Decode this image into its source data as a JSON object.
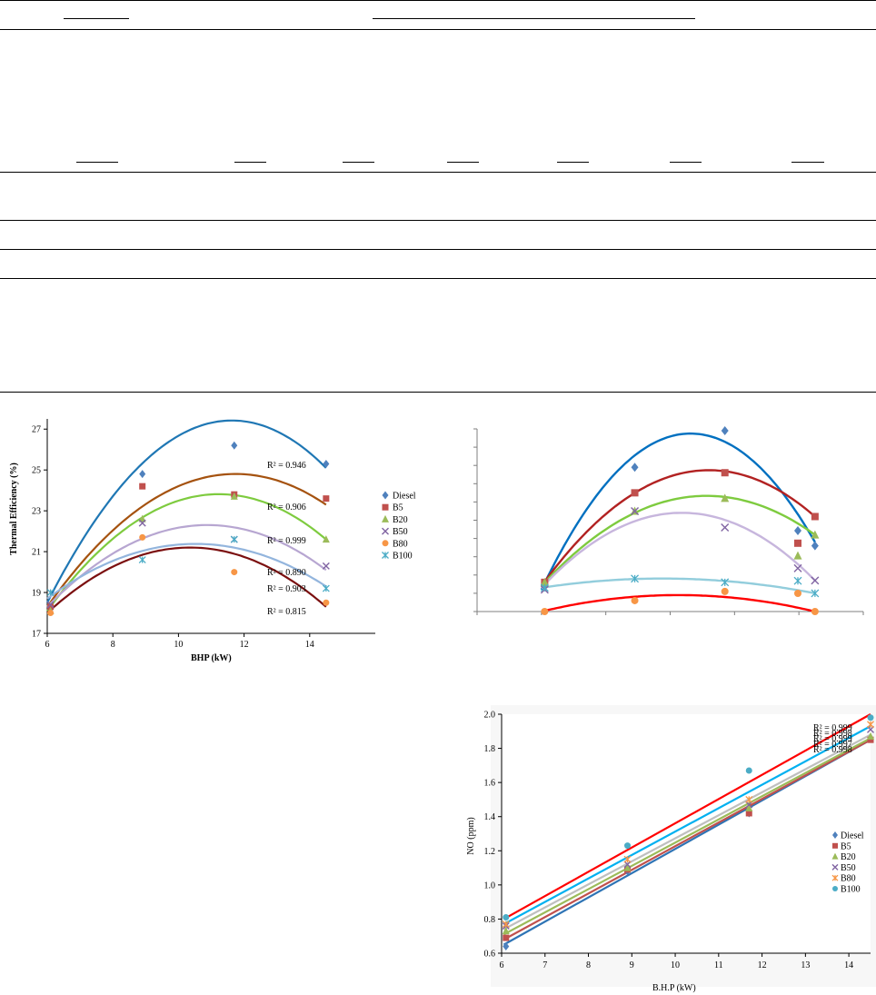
{
  "colors": {
    "Diesel": "#4f81bd",
    "B5": "#c0504d",
    "B20": "#9bbb59",
    "B50": "#8064a2",
    "B80": "#f79646",
    "B100": "#4bacc6",
    "axis": "#000000",
    "gridline": "#d9d9d9"
  },
  "chart_data": [
    {
      "type": "scatter",
      "title": "",
      "xlabel": "BHP (kW)",
      "ylabel": "Thermal Efficiency (%)",
      "xlim": [
        6,
        16
      ],
      "ylim": [
        17,
        27.5
      ],
      "xticks": [
        6,
        8,
        10,
        12,
        14
      ],
      "yticks": [
        17,
        19,
        21,
        23,
        25,
        27
      ],
      "grid": false,
      "legend": "right",
      "series": [
        {
          "name": "Diesel",
          "marker": "diamond",
          "x": [
            6.1,
            8.9,
            11.7,
            14.5
          ],
          "y": [
            18.2,
            24.8,
            26.2,
            25.3
          ],
          "trend": {
            "color": "#1f77b4",
            "x": [
              6,
              11.9,
              14.5
            ],
            "y": [
              18.5,
              27.4,
              25.1
            ]
          }
        },
        {
          "name": "B5",
          "marker": "square",
          "x": [
            6.1,
            8.9,
            11.7,
            14.5
          ],
          "y": [
            18.3,
            24.2,
            23.8,
            23.6
          ],
          "trend": {
            "color": "#a5520f",
            "x": [
              6,
              11.6,
              14.5
            ],
            "y": [
              18.3,
              24.8,
              23.3
            ]
          }
        },
        {
          "name": "B20",
          "marker": "triangle",
          "x": [
            6.1,
            8.9,
            11.7,
            14.5
          ],
          "y": [
            18.1,
            22.6,
            23.7,
            21.6
          ],
          "trend": {
            "color": "#7ecb3f",
            "x": [
              6,
              11.5,
              14.5
            ],
            "y": [
              18.1,
              23.8,
              21.6
            ]
          }
        },
        {
          "name": "B50",
          "marker": "x",
          "x": [
            6.1,
            8.9,
            11.7,
            14.5
          ],
          "y": [
            18.4,
            22.4,
            21.6,
            20.3
          ],
          "trend": {
            "color": "#b7a6d1",
            "x": [
              6,
              11,
              14.5
            ],
            "y": [
              18.3,
              22.3,
              20.1
            ]
          }
        },
        {
          "name": "B80",
          "marker": "circle",
          "x": [
            6.1,
            8.9,
            11.7,
            14.5
          ],
          "y": [
            18.0,
            21.7,
            20.0,
            18.5
          ],
          "trend": {
            "color": "#7b0f0f",
            "x": [
              6,
              10.3,
              14.5
            ],
            "y": [
              18.0,
              21.2,
              18.3
            ]
          }
        },
        {
          "name": "B100",
          "marker": "asterisk",
          "x": [
            6.1,
            8.9,
            11.7,
            14.5
          ],
          "y": [
            19.0,
            20.6,
            21.6,
            19.2
          ],
          "trend": {
            "color": "#93b5dd",
            "x": [
              6,
              11.3,
              14.5
            ],
            "y": [
              18.7,
              21.3,
              19.3
            ]
          }
        }
      ],
      "annotations": [
        "R² = 0.946",
        "R² = 0.906",
        "R² = 0.999",
        "R² = 0.890",
        "R² = 0.903",
        "R² = 0.815"
      ]
    },
    {
      "type": "scatter",
      "title": "",
      "xlabel": "",
      "ylabel": "",
      "xlim": [
        4,
        16
      ],
      "ylim": [
        0,
        10
      ],
      "grid": false,
      "legend": "right",
      "series": [
        {
          "name": "",
          "marker": "diamond",
          "color": "#4f81bd",
          "x": [
            6.1,
            8.9,
            11.7,
            14.5
          ],
          "y": [
            1.5,
            7.9,
            9.9,
            3.6
          ],
          "trend": {
            "color": "#0070c0",
            "x": [
              6,
              10.3,
              14.5
            ],
            "y": [
              1.2,
              9.7,
              3.8
            ]
          }
        },
        {
          "name": "",
          "marker": "square",
          "color": "#c0504d",
          "x": [
            6.1,
            8.9,
            11.7,
            14.5
          ],
          "y": [
            1.6,
            6.5,
            7.6,
            5.2
          ],
          "trend": {
            "color": "#b22222",
            "x": [
              6,
              10.8,
              14.5
            ],
            "y": [
              1.4,
              7.7,
              5.2
            ]
          }
        },
        {
          "name": "",
          "marker": "triangle",
          "color": "#9bbb59",
          "x": [
            6.1,
            8.9,
            11.7,
            14.5
          ],
          "y": [
            1.6,
            5.5,
            6.2,
            4.2
          ],
          "trend": {
            "color": "#7ecb3f",
            "x": [
              6,
              10.7,
              14.5
            ],
            "y": [
              1.4,
              6.3,
              4.2
            ]
          }
        },
        {
          "name": "",
          "marker": "x",
          "color": "#8064a2",
          "x": [
            6.1,
            8.9,
            11.7,
            14.5
          ],
          "y": [
            1.2,
            5.5,
            4.6,
            1.7
          ],
          "trend": {
            "color": "#c7b6dd",
            "x": [
              6,
              10.2,
              14.5
            ],
            "y": [
              1.3,
              5.4,
              1.7
            ]
          }
        },
        {
          "name": "",
          "marker": "asterisk",
          "color": "#4bacc6",
          "x": [
            6.1,
            8.9,
            11.7,
            14.5
          ],
          "y": [
            1.3,
            1.8,
            1.6,
            1.0
          ],
          "trend": {
            "color": "#92cddc",
            "x": [
              6,
              10.2,
              14.5
            ],
            "y": [
              1.3,
              1.8,
              1.0
            ]
          }
        },
        {
          "name": "",
          "marker": "circle",
          "color": "#f79646",
          "x": [
            6.1,
            8.9,
            11.7,
            14.5
          ],
          "y": [
            0.0,
            0.6,
            1.1,
            0.0
          ],
          "trend": {
            "color": "#ff0000",
            "x": [
              6,
              10.3,
              14.5
            ],
            "y": [
              0.0,
              0.9,
              0.0
            ]
          }
        }
      ]
    },
    {
      "type": "scatter",
      "title": "",
      "xlabel": "B.H.P (kW)",
      "ylabel": "NO  (ppm)",
      "xlim": [
        6,
        14.5
      ],
      "ylim": [
        0.6,
        2.0
      ],
      "xticks": [
        "6",
        "7",
        "8",
        "9",
        "10",
        "11",
        "12",
        "13",
        "14"
      ],
      "yticks": [
        "0.6",
        "0.8",
        "1.0",
        "1.2",
        "1.4",
        "1.6",
        "1.8",
        "2.0"
      ],
      "grid": false,
      "legend": "right",
      "series": [
        {
          "name": "Diesel",
          "marker": "diamond",
          "x": [
            6.1,
            8.9,
            11.7,
            14.5
          ],
          "y": [
            0.64,
            1.08,
            1.42,
            1.86
          ],
          "trend": {
            "color": "#2e74b5",
            "x": [
              6.05,
              14.5
            ],
            "y": [
              0.65,
              1.85
            ]
          }
        },
        {
          "name": "B5",
          "marker": "square",
          "x": [
            6.1,
            8.9,
            11.7,
            14.5
          ],
          "y": [
            0.69,
            1.09,
            1.42,
            1.85
          ],
          "trend": {
            "color": "#c0504d",
            "x": [
              6.05,
              14.5
            ],
            "y": [
              0.68,
              1.85
            ]
          }
        },
        {
          "name": "B20",
          "marker": "triangle",
          "x": [
            6.1,
            8.9,
            11.7,
            14.5
          ],
          "y": [
            0.73,
            1.1,
            1.45,
            1.87
          ],
          "trend": {
            "color": "#9bbb59",
            "x": [
              6.05,
              14.5
            ],
            "y": [
              0.71,
              1.86
            ]
          }
        },
        {
          "name": "B50",
          "marker": "x",
          "x": [
            6.1,
            8.9,
            11.7,
            14.5
          ],
          "y": [
            0.76,
            1.12,
            1.47,
            1.91
          ],
          "trend": {
            "color": "#bfbfbf",
            "x": [
              6.05,
              14.5
            ],
            "y": [
              0.74,
              1.88
            ]
          }
        },
        {
          "name": "B80",
          "marker": "asterisk",
          "x": [
            6.1,
            8.9,
            11.7,
            14.5
          ],
          "y": [
            0.77,
            1.15,
            1.5,
            1.94
          ],
          "trend": {
            "color": "#00b0f0",
            "x": [
              6.05,
              14.5
            ],
            "y": [
              0.77,
              1.93
            ]
          }
        },
        {
          "name": "B100",
          "marker": "circle",
          "x": [
            6.1,
            8.9,
            11.7,
            14.5
          ],
          "y": [
            0.81,
            1.23,
            1.67,
            1.98
          ],
          "trend": {
            "color": "#ff0000",
            "x": [
              6.05,
              14.5
            ],
            "y": [
              0.8,
              2.05
            ]
          }
        }
      ],
      "annotations": [
        "R² = 0.999",
        "R² = 0.998",
        "R² = 0.999",
        "R² = 0.997",
        "R² = 0.998"
      ]
    }
  ]
}
